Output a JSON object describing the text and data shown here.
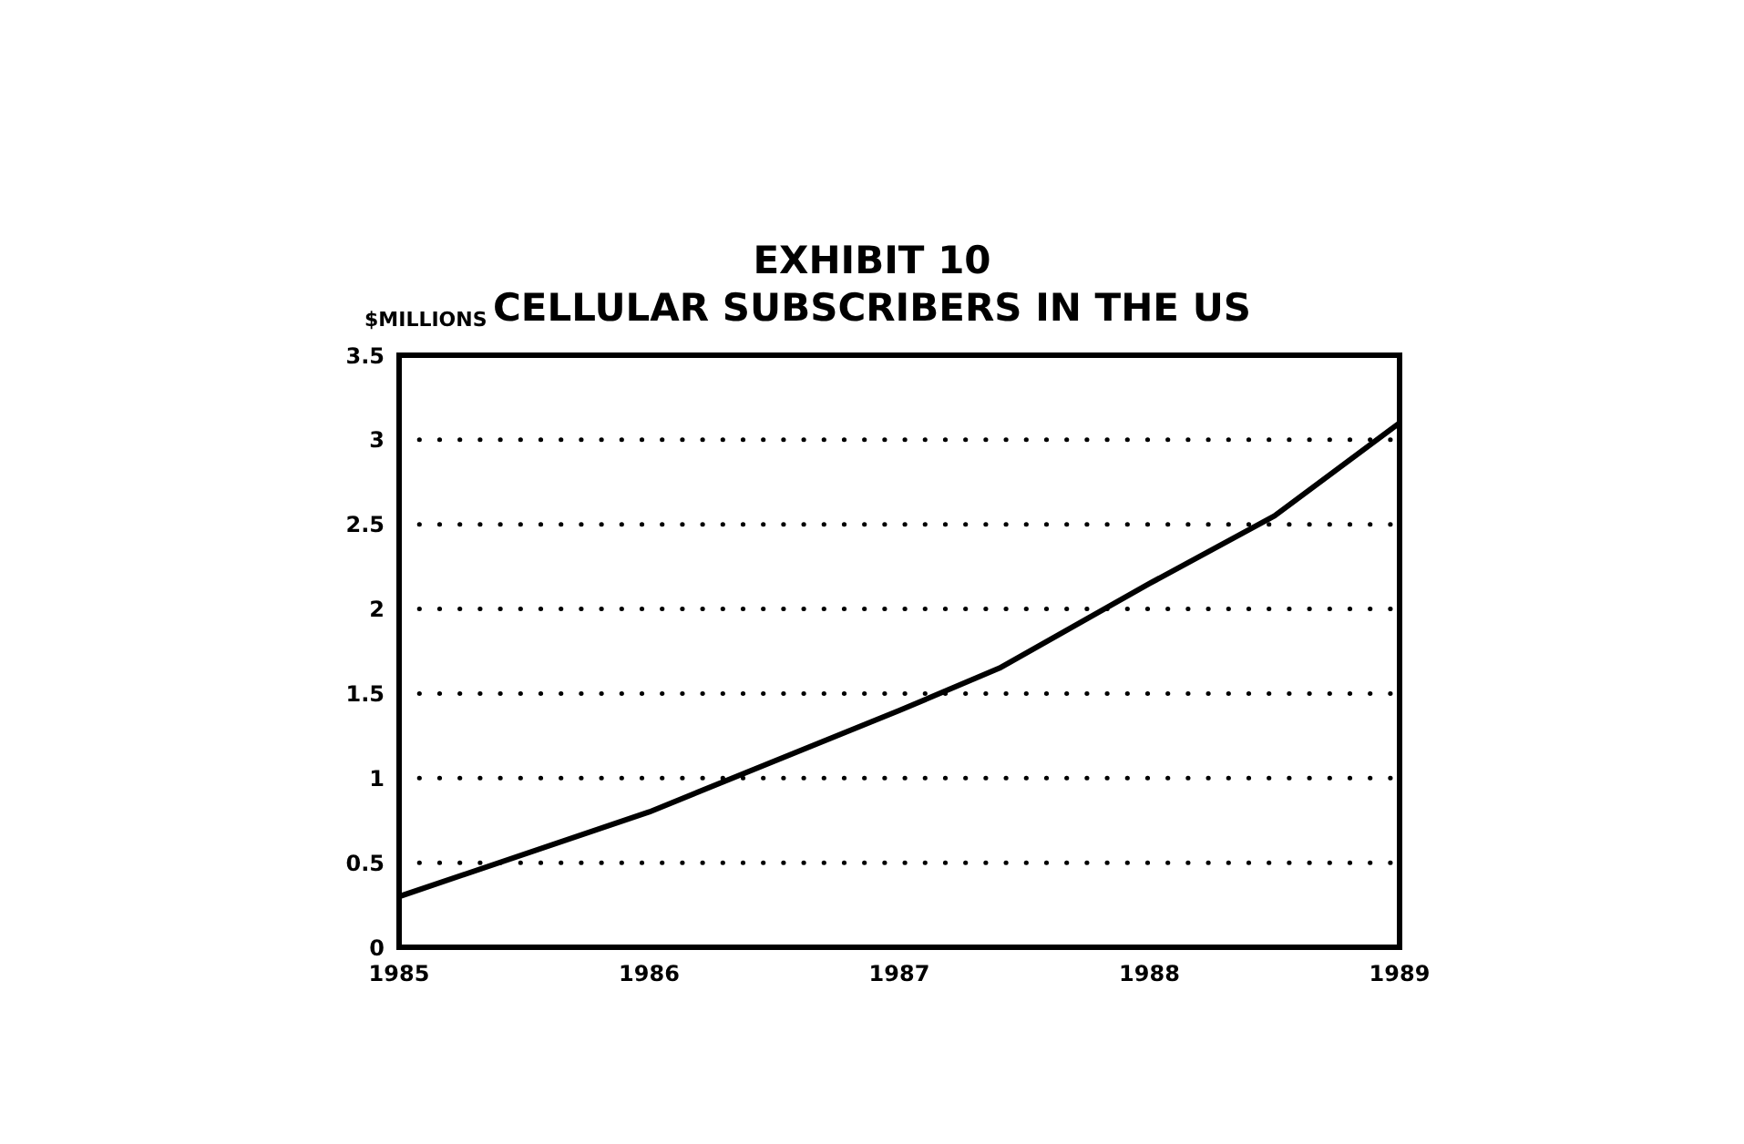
{
  "chart_data": {
    "type": "line",
    "title": "EXHIBIT 10\nCELLULAR SUBSCRIBERS IN THE US",
    "ylabel": "$MILLIONS",
    "x": [
      1985,
      1986,
      1987,
      1987.4,
      1988,
      1988.5,
      1989
    ],
    "series": [
      {
        "color": "#000000",
        "values": [
          0.3,
          0.8,
          1.4,
          1.65,
          2.15,
          2.55,
          3.1
        ]
      }
    ],
    "xlim": [
      1985,
      1989
    ],
    "xticks": [
      1985,
      1986,
      1987,
      1988,
      1989
    ],
    "ylim": [
      0,
      3.5
    ],
    "yticks": [
      0,
      0.5,
      1,
      1.5,
      2,
      2.5,
      3,
      3.5
    ],
    "grid": "y",
    "marker": "none",
    "line_style": "solid"
  }
}
